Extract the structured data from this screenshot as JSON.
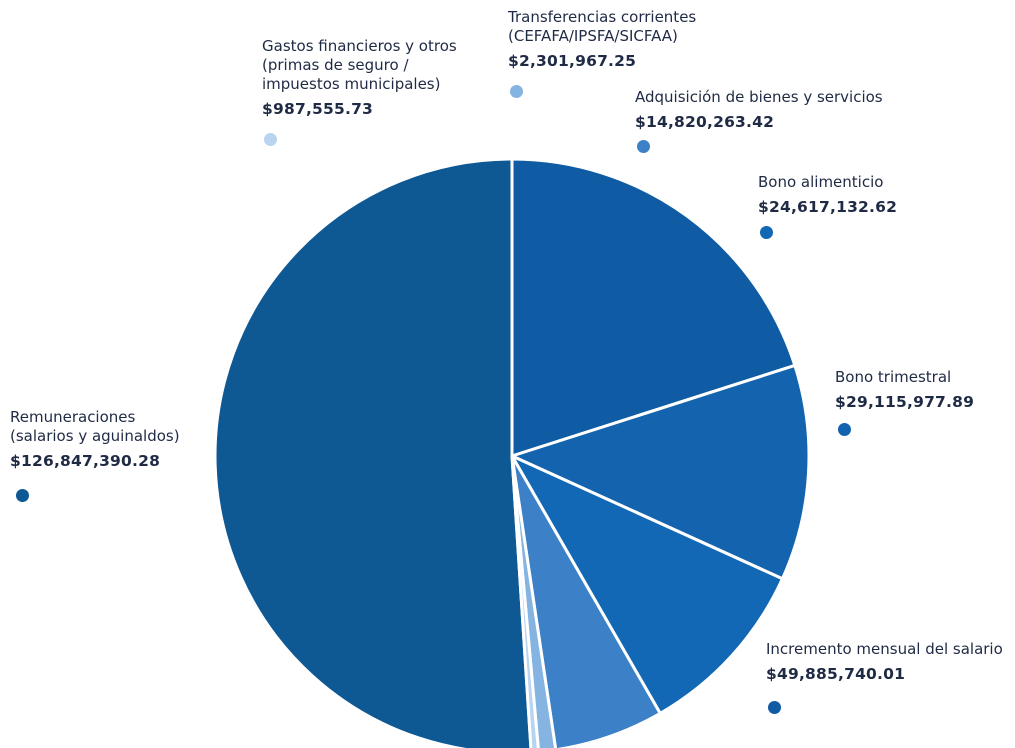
{
  "chart_data": {
    "type": "pie",
    "slices": [
      {
        "label": "Remuneraciones\n(salarios y aguinaldos)",
        "value_text": "$126,847,390.28",
        "value": 126847390.28,
        "color": "#0e5894"
      },
      {
        "label": "Incremento mensual del salario",
        "value_text": "$49,885,740.01",
        "value": 49885740.01,
        "color": "#0f5ca4"
      },
      {
        "label": "Bono trimestral",
        "value_text": "$29,115,977.89",
        "value": 29115977.89,
        "color": "#1363ae"
      },
      {
        "label": "Bono alimenticio",
        "value_text": "$24,617,132.62",
        "value": 24617132.62,
        "color": "#1268b4"
      },
      {
        "label": "Adquisición de bienes y servicios",
        "value_text": "$14,820,263.42",
        "value": 14820263.42,
        "color": "#3c80c8"
      },
      {
        "label": "Transferencias corrientes\n(CEFAFA/IPSFA/SICFAA)",
        "value_text": "$2,301,967.25",
        "value": 2301967.25,
        "color": "#86b4e2"
      },
      {
        "label": "Gastos financieros y otros\n(primas de seguro /\nimpuestos municipales)",
        "value_text": "$987,555.73",
        "value": 987555.73,
        "color": "#b9d4f0"
      }
    ]
  }
}
